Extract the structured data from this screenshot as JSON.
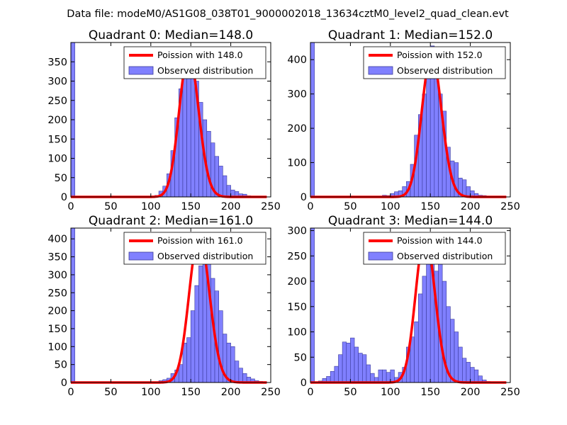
{
  "suptitle": "Data file: modeM0/AS1G08_038T01_9000002018_13634cztM0_level2_quad_clean.evt",
  "colors": {
    "bar_fill": "#8080ff",
    "bar_edge": "#3a3a9a",
    "curve": "#ff0000"
  },
  "chart_data": [
    {
      "type": "bar",
      "title": "Quadrant 0: Median=148.0",
      "xlim": [
        0,
        250
      ],
      "ylim": [
        0,
        400
      ],
      "xticks": [
        0,
        50,
        100,
        150,
        200,
        250
      ],
      "yticks": [
        0,
        50,
        100,
        150,
        200,
        250,
        300,
        350
      ],
      "bin_width": 5,
      "bin_starts": [
        0,
        105,
        110,
        115,
        120,
        125,
        130,
        135,
        140,
        145,
        150,
        155,
        160,
        165,
        170,
        175,
        180,
        185,
        190,
        195,
        200,
        205,
        210,
        215,
        220,
        225
      ],
      "values": [
        400,
        4,
        15,
        28,
        60,
        120,
        205,
        280,
        360,
        375,
        340,
        300,
        245,
        200,
        170,
        140,
        105,
        80,
        55,
        30,
        18,
        14,
        8,
        7,
        3,
        1
      ],
      "curve": {
        "name": "Poission with 148.0",
        "mean": 148,
        "peak": 370
      },
      "legend": [
        "Poission with 148.0",
        "Observed distribution"
      ]
    },
    {
      "type": "bar",
      "title": "Quadrant 1: Median=152.0",
      "xlim": [
        0,
        250
      ],
      "ylim": [
        0,
        450
      ],
      "xticks": [
        0,
        50,
        100,
        150,
        200,
        250
      ],
      "yticks": [
        0,
        100,
        200,
        300,
        400
      ],
      "bin_width": 5,
      "bin_starts": [
        0,
        90,
        95,
        100,
        105,
        110,
        115,
        120,
        125,
        130,
        135,
        140,
        145,
        150,
        155,
        160,
        165,
        170,
        175,
        180,
        185,
        190,
        195,
        200,
        205,
        210,
        215,
        220,
        225
      ],
      "values": [
        450,
        5,
        4,
        10,
        15,
        18,
        30,
        45,
        95,
        180,
        240,
        300,
        395,
        440,
        360,
        300,
        250,
        145,
        105,
        100,
        55,
        50,
        30,
        18,
        10,
        5,
        4,
        2,
        1
      ],
      "curve": {
        "name": "Poission with 152.0",
        "mean": 152,
        "peak": 415
      },
      "legend": [
        "Poission with 152.0",
        "Observed distribution"
      ]
    },
    {
      "type": "bar",
      "title": "Quadrant 2: Median=161.0",
      "xlim": [
        0,
        250
      ],
      "ylim": [
        0,
        430
      ],
      "xticks": [
        0,
        50,
        100,
        150,
        200,
        250
      ],
      "yticks": [
        0,
        50,
        100,
        150,
        200,
        250,
        300,
        350,
        400
      ],
      "bin_width": 5,
      "bin_starts": [
        0,
        110,
        115,
        120,
        125,
        130,
        135,
        140,
        145,
        150,
        155,
        160,
        165,
        170,
        175,
        180,
        185,
        190,
        195,
        200,
        205,
        210,
        215,
        220,
        225,
        230,
        235,
        240
      ],
      "values": [
        430,
        5,
        8,
        12,
        25,
        35,
        50,
        110,
        125,
        200,
        270,
        325,
        395,
        360,
        290,
        255,
        200,
        135,
        110,
        100,
        60,
        40,
        25,
        15,
        10,
        5,
        3,
        2
      ],
      "curve": {
        "name": "Poission with 161.0",
        "mean": 161,
        "peak": 410
      },
      "legend": [
        "Poission with 161.0",
        "Observed distribution"
      ]
    },
    {
      "type": "bar",
      "title": "Quadrant 3: Median=144.0",
      "xlim": [
        0,
        250
      ],
      "ylim": [
        0,
        305
      ],
      "xticks": [
        0,
        50,
        100,
        150,
        200,
        250
      ],
      "yticks": [
        0,
        50,
        100,
        150,
        200,
        250,
        300
      ],
      "bin_width": 5,
      "bin_starts": [
        0,
        10,
        15,
        20,
        25,
        30,
        35,
        40,
        45,
        50,
        55,
        60,
        65,
        70,
        75,
        80,
        85,
        90,
        95,
        100,
        105,
        110,
        115,
        120,
        125,
        130,
        135,
        140,
        145,
        150,
        155,
        160,
        165,
        170,
        175,
        180,
        185,
        190,
        195,
        200,
        205,
        210,
        215,
        220
      ],
      "values": [
        305,
        3,
        8,
        12,
        22,
        32,
        55,
        80,
        78,
        88,
        70,
        58,
        55,
        35,
        18,
        10,
        25,
        25,
        20,
        25,
        10,
        20,
        30,
        70,
        90,
        120,
        175,
        210,
        235,
        240,
        220,
        285,
        200,
        150,
        125,
        100,
        70,
        48,
        40,
        30,
        25,
        13,
        5,
        2
      ],
      "curve": {
        "name": "Poission with 144.0",
        "mean": 144,
        "peak": 292
      },
      "legend": [
        "Poission with 144.0",
        "Observed distribution"
      ]
    }
  ]
}
